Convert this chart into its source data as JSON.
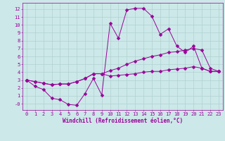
{
  "background_color": "#cce8e8",
  "line_color": "#990099",
  "xlim": [
    -0.5,
    23.5
  ],
  "ylim": [
    -0.8,
    12.8
  ],
  "xticks": [
    0,
    1,
    2,
    3,
    4,
    5,
    6,
    7,
    8,
    9,
    10,
    11,
    12,
    13,
    14,
    15,
    16,
    17,
    18,
    19,
    20,
    21,
    22,
    23
  ],
  "yticks": [
    0,
    1,
    2,
    3,
    4,
    5,
    6,
    7,
    8,
    9,
    10,
    11,
    12
  ],
  "ytick_labels": [
    "-0",
    "1",
    "2",
    "3",
    "4",
    "5",
    "6",
    "7",
    "8",
    "9",
    "10",
    "11",
    "12"
  ],
  "line1_y": [
    3.0,
    2.2,
    1.8,
    0.7,
    0.5,
    -0.1,
    -0.2,
    1.3,
    3.2,
    1.1,
    10.2,
    8.3,
    11.9,
    12.1,
    12.1,
    11.1,
    8.8,
    9.5,
    7.3,
    6.5,
    7.3,
    4.5,
    4.1,
    4.1
  ],
  "line2_y": [
    3.0,
    2.8,
    2.6,
    2.4,
    2.5,
    2.5,
    2.8,
    3.2,
    3.8,
    3.8,
    4.2,
    4.5,
    5.0,
    5.4,
    5.7,
    6.0,
    6.2,
    6.5,
    6.6,
    6.8,
    7.0,
    6.8,
    4.5,
    4.1
  ],
  "line3_y": [
    3.0,
    2.8,
    2.6,
    2.4,
    2.5,
    2.5,
    2.8,
    3.2,
    3.8,
    3.8,
    3.5,
    3.6,
    3.7,
    3.8,
    4.0,
    4.1,
    4.1,
    4.3,
    4.4,
    4.5,
    4.7,
    4.5,
    4.1,
    4.1
  ],
  "xlabel": "Windchill (Refroidissement éolien,°C)",
  "grid_color": "#aacccc",
  "font_color": "#990099",
  "tick_fontsize": 5,
  "xlabel_fontsize": 5.5,
  "markersize": 2.5
}
